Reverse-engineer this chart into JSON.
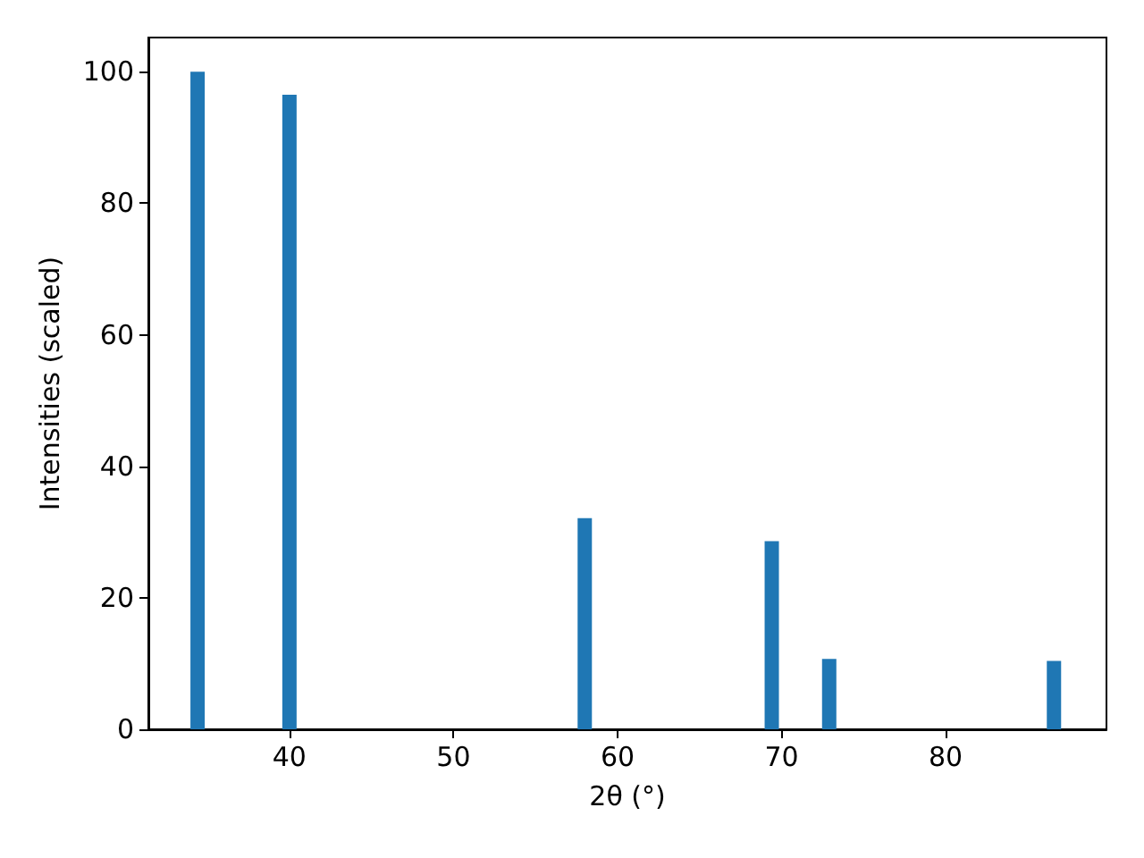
{
  "chart_data": {
    "type": "bar",
    "xlabel": "2θ (°)",
    "ylabel": "Intensities (scaled)",
    "x": [
      34.4,
      40.0,
      58.0,
      69.4,
      72.9,
      86.6
    ],
    "values": [
      100,
      96.5,
      32.1,
      28.6,
      10.7,
      10.4
    ],
    "color": "#1f77b4",
    "xlim": [
      31.4,
      89.8
    ],
    "xticks": [
      40,
      50,
      60,
      70,
      80
    ],
    "ylim": [
      0,
      105.2
    ],
    "yticks": [
      0,
      20,
      40,
      60,
      80,
      100
    ],
    "grid": false
  }
}
